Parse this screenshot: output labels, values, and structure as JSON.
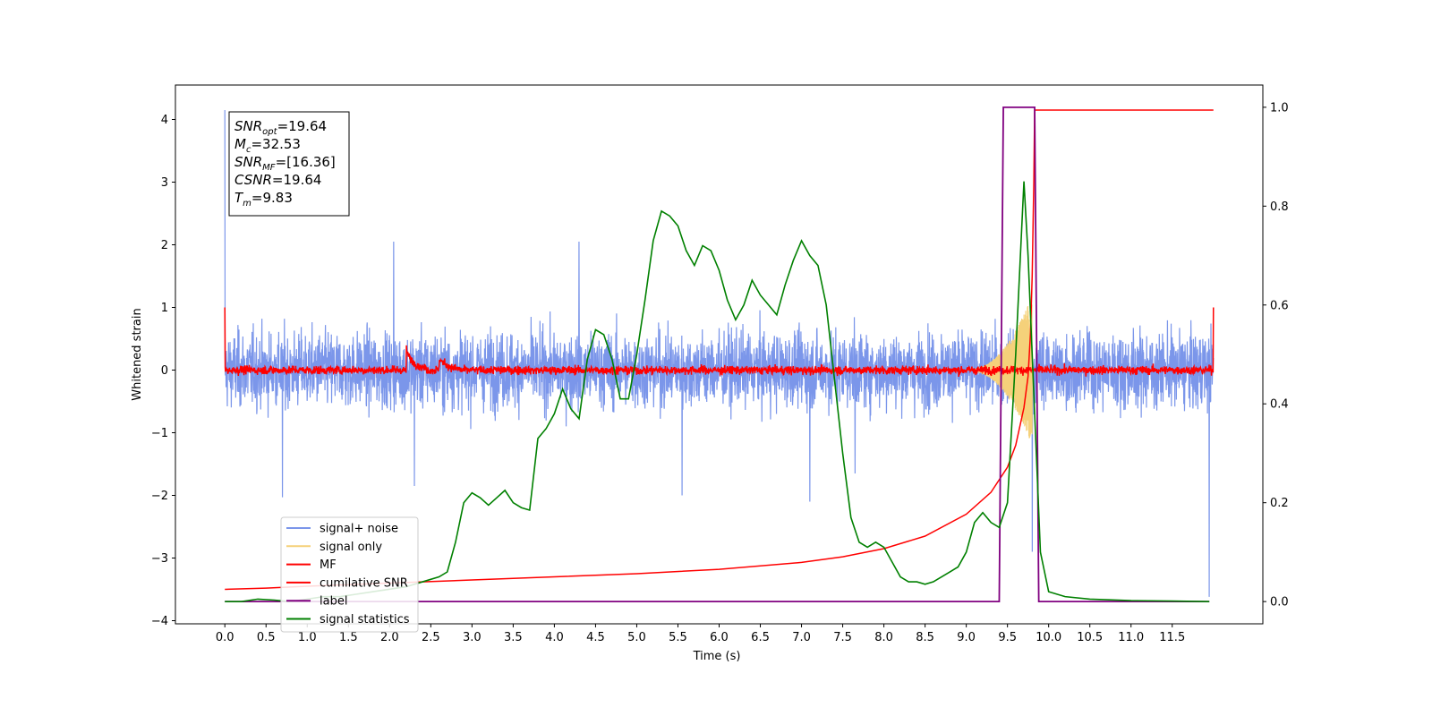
{
  "chart_data": {
    "type": "line",
    "xlabel": "Time (s)",
    "ylabel": "Whitened strain",
    "xlim": [
      -0.6,
      12.6
    ],
    "ylim": [
      -4.05,
      4.55
    ],
    "y2lim": [
      -0.045,
      1.045
    ],
    "xticks": [
      "0.0",
      "0.5",
      "1.0",
      "1.5",
      "2.0",
      "2.5",
      "3.0",
      "3.5",
      "4.0",
      "4.5",
      "5.0",
      "5.5",
      "6.0",
      "6.5",
      "7.0",
      "7.5",
      "8.0",
      "8.5",
      "9.0",
      "9.5",
      "10.0",
      "10.5",
      "11.0",
      "11.5"
    ],
    "yticks": [
      "−4",
      "−3",
      "−2",
      "−1",
      "0",
      "1",
      "2",
      "3",
      "4"
    ],
    "y2ticks": [
      "0.0",
      "0.2",
      "0.4",
      "0.6",
      "0.8",
      "1.0"
    ],
    "grid": false,
    "legend_position": "lower-left",
    "annotation": {
      "lines": [
        {
          "sym": "SNR",
          "sub": "opt",
          "val": "=19.64"
        },
        {
          "sym": "M",
          "sub": "c",
          "val": "=32.53"
        },
        {
          "sym": "SNR",
          "sub": "MF",
          "val": "=[16.36]"
        },
        {
          "sym": "CSNR",
          "sub": "",
          "val": "=19.64"
        },
        {
          "sym": "T",
          "sub": "m",
          "val": "=9.83"
        }
      ]
    },
    "series": [
      {
        "name": "signal+ noise",
        "axis": "left",
        "color": "#7b96ea",
        "description_note": "noisy trace, amplitude range",
        "x": [
          0.0,
          12.0
        ],
        "upper_envelope": 1.2,
        "lower_envelope": -1.2,
        "peaks": [
          [
            0.0,
            4.15
          ],
          [
            0.7,
            -2.03
          ],
          [
            2.05,
            2.05
          ],
          [
            2.3,
            -1.85
          ],
          [
            4.3,
            2.05
          ],
          [
            5.55,
            -2.0
          ],
          [
            7.1,
            -2.1
          ],
          [
            7.65,
            -1.65
          ],
          [
            9.8,
            -2.9
          ],
          [
            11.95,
            -3.62
          ]
        ]
      },
      {
        "name": "signal only",
        "axis": "left",
        "color": "#f5d17a",
        "x": [
          9.0,
          9.8
        ],
        "peak_amplitude": 1.2
      },
      {
        "name": "MF",
        "axis": "left",
        "color": "#ff0000",
        "x": [
          0.0,
          12.0
        ],
        "noise_amplitude": 0.08,
        "bumps": [
          [
            2.2,
            0.32
          ],
          [
            2.6,
            0.2
          ]
        ],
        "endpoints": [
          1.0,
          1.0
        ]
      },
      {
        "name": "cumilative SNR",
        "axis": "left",
        "color": "#ff0000",
        "x": [
          0.0,
          0.5,
          1.0,
          2.0,
          3.0,
          4.0,
          5.0,
          6.0,
          7.0,
          7.5,
          8.0,
          8.5,
          9.0,
          9.3,
          9.5,
          9.6,
          9.7,
          9.75,
          9.78,
          9.8,
          9.82,
          9.83,
          12.0
        ],
        "values": [
          -3.5,
          -3.48,
          -3.45,
          -3.4,
          -3.35,
          -3.3,
          -3.25,
          -3.18,
          -3.07,
          -2.98,
          -2.85,
          -2.65,
          -2.3,
          -1.95,
          -1.55,
          -1.2,
          -0.6,
          -0.1,
          0.6,
          1.5,
          3.0,
          4.15,
          4.15
        ]
      },
      {
        "name": "label",
        "axis": "right",
        "color": "#800080",
        "x": [
          0.0,
          9.4,
          9.45,
          9.83,
          9.88,
          11.95
        ],
        "values": [
          0.0,
          0.0,
          1.0,
          1.0,
          0.0,
          0.0
        ]
      },
      {
        "name": "signal statistics",
        "axis": "right",
        "color": "#008000",
        "x": [
          0.0,
          0.2,
          0.4,
          0.6,
          0.8,
          1.0,
          1.2,
          1.4,
          1.6,
          1.8,
          2.0,
          2.2,
          2.4,
          2.6,
          2.7,
          2.8,
          2.9,
          3.0,
          3.1,
          3.2,
          3.3,
          3.4,
          3.5,
          3.6,
          3.7,
          3.8,
          3.9,
          4.0,
          4.1,
          4.2,
          4.3,
          4.4,
          4.5,
          4.6,
          4.7,
          4.8,
          4.9,
          5.0,
          5.1,
          5.2,
          5.3,
          5.4,
          5.5,
          5.6,
          5.7,
          5.8,
          5.9,
          6.0,
          6.1,
          6.2,
          6.3,
          6.4,
          6.5,
          6.6,
          6.7,
          6.8,
          6.9,
          7.0,
          7.1,
          7.2,
          7.3,
          7.4,
          7.5,
          7.6,
          7.7,
          7.8,
          7.9,
          8.0,
          8.1,
          8.2,
          8.3,
          8.4,
          8.5,
          8.6,
          8.7,
          8.8,
          8.9,
          9.0,
          9.1,
          9.2,
          9.3,
          9.4,
          9.5,
          9.6,
          9.7,
          9.75,
          9.8,
          9.85,
          9.9,
          10.0,
          10.2,
          10.5,
          11.0,
          11.5,
          11.95
        ],
        "values": [
          0.0,
          0.0,
          0.005,
          0.003,
          0.0,
          0.005,
          0.01,
          0.01,
          0.015,
          0.02,
          0.025,
          0.03,
          0.04,
          0.05,
          0.06,
          0.12,
          0.2,
          0.22,
          0.21,
          0.195,
          0.21,
          0.225,
          0.2,
          0.19,
          0.185,
          0.33,
          0.35,
          0.38,
          0.43,
          0.39,
          0.37,
          0.49,
          0.55,
          0.54,
          0.49,
          0.41,
          0.41,
          0.5,
          0.61,
          0.73,
          0.79,
          0.78,
          0.76,
          0.71,
          0.68,
          0.72,
          0.71,
          0.67,
          0.61,
          0.57,
          0.6,
          0.65,
          0.62,
          0.6,
          0.58,
          0.64,
          0.69,
          0.73,
          0.7,
          0.68,
          0.6,
          0.45,
          0.3,
          0.17,
          0.12,
          0.11,
          0.12,
          0.11,
          0.08,
          0.05,
          0.04,
          0.04,
          0.035,
          0.04,
          0.05,
          0.06,
          0.07,
          0.1,
          0.16,
          0.18,
          0.16,
          0.15,
          0.2,
          0.5,
          0.85,
          0.7,
          0.5,
          0.3,
          0.1,
          0.02,
          0.01,
          0.005,
          0.002,
          0.001,
          0.0
        ]
      }
    ]
  }
}
